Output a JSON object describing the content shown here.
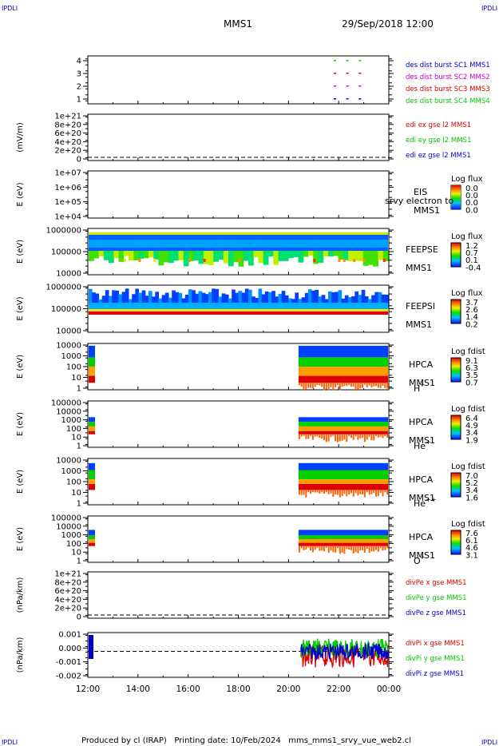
{
  "corner_tag": "IPDLI",
  "header": {
    "spacecraft": "MMS1",
    "datetime": "29/Sep/2018 12:00"
  },
  "footer": "Produced by cl (IRAP)   Printing date: 10/Feb/2024   mms_mms1_srvy_vue_web2.cl",
  "x_ticks": [
    "12:00",
    "14:00",
    "16:00",
    "18:00",
    "20:00",
    "22:00",
    "00:00"
  ],
  "colors": {
    "black": "#000000",
    "red": "#dd0000",
    "green": "#00cc00",
    "blue": "#0000cc",
    "magenta": "#cc00cc"
  },
  "chart_data": [
    {
      "id": "burst",
      "type": "scatter",
      "yticks": [
        "1",
        "2",
        "3",
        "4"
      ],
      "series": [
        {
          "name": "des dist burst SC1 MMS1",
          "color": "#0000cc"
        },
        {
          "name": "des dist burst SC2 MMS2",
          "color": "#cc00cc"
        },
        {
          "name": "des dist burst SC3 MMS3",
          "color": "#dd0000"
        },
        {
          "name": "des dist burst SC4 MMS4",
          "color": "#00cc00"
        }
      ]
    },
    {
      "id": "edi",
      "type": "line",
      "ylabel": "(mV/m)",
      "yticks": [
        "1e+21",
        "8e+20",
        "6e+20",
        "4e+20",
        "2e+20",
        "0"
      ],
      "series": [
        {
          "name": "edi ex gse l2 MMS1",
          "color": "#dd0000"
        },
        {
          "name": "edi ey gse l2 MMS1",
          "color": "#00cc00"
        },
        {
          "name": "edi ez gse l2 MMS1",
          "color": "#0000cc"
        }
      ]
    },
    {
      "id": "eis",
      "type": "heatmap",
      "ylabel": "E (eV)",
      "yticks": [
        "1e+07",
        "1e+06",
        "1e+05",
        "1e+04"
      ],
      "labels": [
        "EIS",
        "MMS1"
      ],
      "overlay": "srvy electron to",
      "cbar_title": "Log flux",
      "cbar_ticks": [
        "0.0",
        "0.0",
        "0.0",
        "0.0"
      ]
    },
    {
      "id": "feepse",
      "type": "heatmap",
      "ylabel": "E (eV)",
      "yticks": [
        "1000000",
        "100000",
        "10000"
      ],
      "labels": [
        "FEEPSE",
        "MMS1"
      ],
      "cbar_title": "Log flux",
      "cbar_ticks": [
        "1.2",
        "0.7",
        "0.1",
        "-0.4"
      ]
    },
    {
      "id": "feepsi",
      "type": "heatmap",
      "ylabel": "E (eV)",
      "yticks": [
        "1000000",
        "100000",
        "10000"
      ],
      "labels": [
        "FEEPSI",
        "MMS1"
      ],
      "cbar_title": "Log flux",
      "cbar_ticks": [
        "3.7",
        "2.6",
        "1.4",
        "0.2"
      ]
    },
    {
      "id": "hpca_h",
      "type": "heatmap",
      "ylabel": "E (eV)",
      "yticks": [
        "10000",
        "1000",
        "100",
        "10",
        "1"
      ],
      "labels": [
        "HPCA",
        "MMS1"
      ],
      "species": "H",
      "species_sup": "+",
      "cbar_title": "Log fdist",
      "cbar_ticks": [
        "9.1",
        "6.3",
        "3.5",
        "0.7"
      ]
    },
    {
      "id": "hpca_he",
      "type": "heatmap",
      "ylabel": "E (eV)",
      "yticks": [
        "100000",
        "10000",
        "1000",
        "100",
        "10",
        "1"
      ],
      "labels": [
        "HPCA",
        "MMS1"
      ],
      "species": "He",
      "species_sup": "+",
      "cbar_title": "Log fdist",
      "cbar_ticks": [
        "6.4",
        "4.9",
        "3.4",
        "1.9"
      ]
    },
    {
      "id": "hpca_he2",
      "type": "heatmap",
      "ylabel": "E (eV)",
      "yticks": [
        "10000",
        "1000",
        "100",
        "10",
        "1"
      ],
      "labels": [
        "HPCA",
        "MMS1"
      ],
      "species": "He",
      "species_sup": "++",
      "cbar_title": "Log fdist",
      "cbar_ticks": [
        "7.0",
        "5.2",
        "3.4",
        "1.6"
      ]
    },
    {
      "id": "hpca_o",
      "type": "heatmap",
      "ylabel": "E (eV)",
      "yticks": [
        "100000",
        "10000",
        "1000",
        "100",
        "10",
        "1"
      ],
      "labels": [
        "HPCA",
        "MMS1"
      ],
      "species": "O",
      "species_sup": "+",
      "cbar_title": "Log fdist",
      "cbar_ticks": [
        "7.6",
        "6.1",
        "4.6",
        "3.1"
      ]
    },
    {
      "id": "divpe",
      "type": "line",
      "ylabel": "(nPa/km)",
      "yticks": [
        "1e+21",
        "8e+20",
        "6e+20",
        "4e+20",
        "2e+20",
        "0"
      ],
      "series": [
        {
          "name": "divPe x gse MMS1",
          "color": "#dd0000"
        },
        {
          "name": "divPe y gse MMS1",
          "color": "#00cc00"
        },
        {
          "name": "divPe z gse MMS1",
          "color": "#0000cc"
        }
      ]
    },
    {
      "id": "divpi",
      "type": "line",
      "ylabel": "(nPa/km)",
      "yticks": [
        "0.001",
        "0.000",
        "-0.001",
        "-0.002"
      ],
      "series": [
        {
          "name": "divPi x gse MMS1",
          "color": "#dd0000"
        },
        {
          "name": "divPi y gse MMS1",
          "color": "#00cc00"
        },
        {
          "name": "divPi z gse MMS1",
          "color": "#0000cc"
        }
      ]
    }
  ]
}
